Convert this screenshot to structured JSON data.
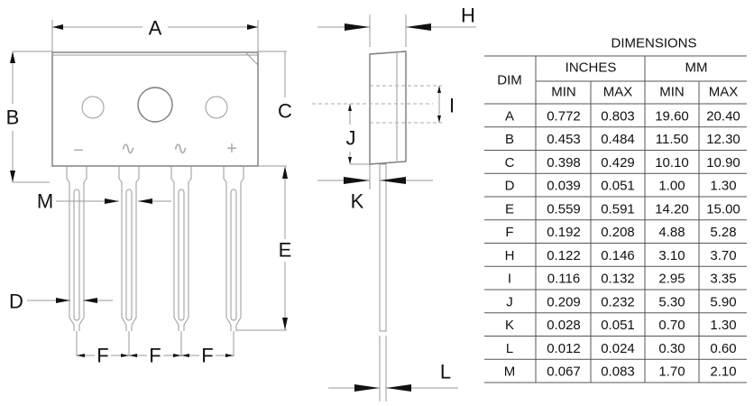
{
  "drawing": {
    "front_labels": {
      "A": "A",
      "B": "B",
      "C": "C",
      "D": "D",
      "E": "E",
      "F": "F",
      "M": "M"
    },
    "side_labels": {
      "H": "H",
      "I": "I",
      "J": "J",
      "K": "K",
      "L": "L"
    },
    "pin_symbols": [
      "−",
      "∿",
      "∿",
      "+"
    ]
  },
  "table": {
    "title": "DIMENSIONS",
    "dim_header": "DIM",
    "group_headers": [
      "INCHES",
      "MM"
    ],
    "sub_headers": [
      "MIN",
      "MAX",
      "MIN",
      "MAX"
    ],
    "rows": [
      [
        "A",
        "0.772",
        "0.803",
        "19.60",
        "20.40"
      ],
      [
        "B",
        "0.453",
        "0.484",
        "11.50",
        "12.30"
      ],
      [
        "C",
        "0.398",
        "0.429",
        "10.10",
        "10.90"
      ],
      [
        "D",
        "0.039",
        "0.051",
        "1.00",
        "1.30"
      ],
      [
        "E",
        "0.559",
        "0.591",
        "14.20",
        "15.00"
      ],
      [
        "F",
        "0.192",
        "0.208",
        "4.88",
        "5.28"
      ],
      [
        "H",
        "0.122",
        "0.146",
        "3.10",
        "3.70"
      ],
      [
        "I",
        "0.116",
        "0.132",
        "2.95",
        "3.35"
      ],
      [
        "J",
        "0.209",
        "0.232",
        "5.30",
        "5.90"
      ],
      [
        "K",
        "0.028",
        "0.051",
        "0.70",
        "1.30"
      ],
      [
        "L",
        "0.012",
        "0.024",
        "0.30",
        "0.60"
      ],
      [
        "M",
        "0.067",
        "0.083",
        "1.70",
        "2.10"
      ]
    ]
  }
}
